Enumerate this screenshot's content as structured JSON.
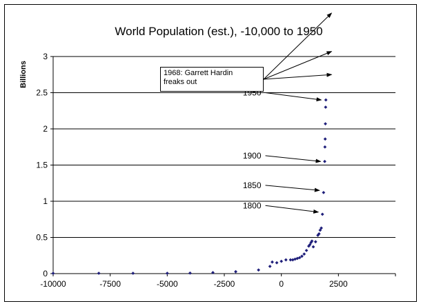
{
  "chart_data": {
    "type": "scatter",
    "title": "World Population (est.), -10,000 to 1950",
    "xlabel": "",
    "ylabel": "Billions",
    "xlim": [
      -10000,
      5000
    ],
    "ylim": [
      0,
      3
    ],
    "xticks": [
      -10000,
      -7500,
      -5000,
      -2500,
      0,
      2500
    ],
    "xtick_labels": [
      "-10000",
      "-7500",
      "-5000",
      "-2500",
      "0",
      "2500"
    ],
    "yticks": [
      0,
      0.5,
      1,
      1.5,
      2,
      2.5,
      3
    ],
    "ytick_labels": [
      "0",
      "0.5",
      "1",
      "1.5",
      "2",
      "2.5",
      "3"
    ],
    "grid": "horizontal",
    "legend": "none",
    "marker_color": "#1f1f7a",
    "series": [
      {
        "points": [
          [
            -10000,
            0.004
          ],
          [
            -8000,
            0.005
          ],
          [
            -6500,
            0.005
          ],
          [
            -5000,
            0.005
          ],
          [
            -4000,
            0.007
          ],
          [
            -3000,
            0.014
          ],
          [
            -2000,
            0.027
          ],
          [
            -1000,
            0.05
          ],
          [
            -500,
            0.1
          ],
          [
            -400,
            0.16
          ],
          [
            -200,
            0.15
          ],
          [
            0,
            0.17
          ],
          [
            200,
            0.19
          ],
          [
            400,
            0.19
          ],
          [
            500,
            0.19
          ],
          [
            600,
            0.2
          ],
          [
            700,
            0.21
          ],
          [
            800,
            0.22
          ],
          [
            900,
            0.24
          ],
          [
            1000,
            0.27
          ],
          [
            1100,
            0.32
          ],
          [
            1200,
            0.38
          ],
          [
            1250,
            0.4
          ],
          [
            1300,
            0.43
          ],
          [
            1340,
            0.45
          ],
          [
            1400,
            0.37
          ],
          [
            1500,
            0.44
          ],
          [
            1600,
            0.53
          ],
          [
            1650,
            0.55
          ],
          [
            1700,
            0.6
          ],
          [
            1750,
            0.63
          ],
          [
            1800,
            0.82
          ],
          [
            1850,
            1.12
          ],
          [
            1900,
            1.55
          ],
          [
            1910,
            1.75
          ],
          [
            1920,
            1.86
          ],
          [
            1930,
            2.07
          ],
          [
            1940,
            2.3
          ],
          [
            1950,
            2.4
          ]
        ]
      }
    ],
    "annotations": [
      {
        "text": "1950",
        "from": [
          -700,
          2.5
        ],
        "to": [
          1930,
          2.4
        ]
      },
      {
        "text": "1900",
        "from": [
          -700,
          1.63
        ],
        "to": [
          1900,
          1.55
        ]
      },
      {
        "text": "1850",
        "from": [
          -700,
          1.22
        ],
        "to": [
          1850,
          1.15
        ]
      },
      {
        "text": "1800",
        "from": [
          -700,
          0.94
        ],
        "to": [
          1800,
          0.85
        ]
      }
    ],
    "callout": {
      "text": "1968: Garrett Hardin freaks out",
      "line1": "1968: Garrett Hardin",
      "line2": "freaks out",
      "arrow_targets": [
        [
          2200,
          3.6
        ],
        [
          2200,
          3.07
        ],
        [
          2200,
          2.75
        ]
      ]
    }
  }
}
